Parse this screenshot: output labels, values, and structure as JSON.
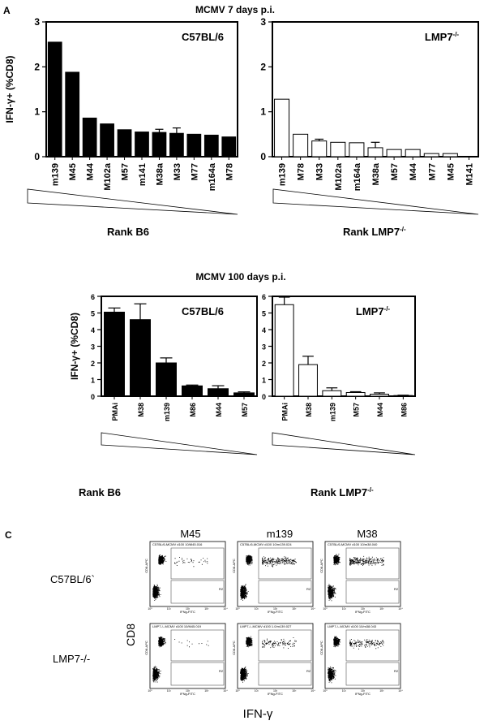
{
  "panel_labels": {
    "a": "A",
    "c": "C"
  },
  "section_titles": {
    "top": "MCMV 7 days p.i.",
    "middle": "MCMV 100 days p.i."
  },
  "rank_labels": {
    "top_left": "Rank B6",
    "top_right": "Rank LMP7",
    "middle_left": "Rank B6",
    "middle_right": "Rank LMP7",
    "superscript": "-/-"
  },
  "chart_data": [
    {
      "id": "day7_c57",
      "type": "bar",
      "title": "C57BL/6",
      "ylabel": "IFN-γ+ (%CD8)",
      "ylim": [
        0,
        3
      ],
      "yticks": [
        "0",
        "1",
        "2",
        "3"
      ],
      "bar_color": "#000000",
      "categories": [
        "m139",
        "M45",
        "M44",
        "M102a",
        "M57",
        "m141",
        "M38a",
        "M33",
        "M77",
        "m164a",
        "M78"
      ],
      "values": [
        2.55,
        1.88,
        0.86,
        0.73,
        0.6,
        0.55,
        0.54,
        0.52,
        0.5,
        0.48,
        0.44
      ],
      "errors": [
        0,
        0,
        0,
        0,
        0,
        0,
        0.07,
        0.12,
        0,
        0,
        0
      ]
    },
    {
      "id": "day7_lmp7",
      "type": "bar",
      "title": "LMP7",
      "title_sup": "-/-",
      "ylabel": "",
      "ylim": [
        0,
        3
      ],
      "yticks": [
        "0",
        "1",
        "2",
        "3"
      ],
      "bar_color": "#ffffff",
      "categories": [
        "m139",
        "M78",
        "M33",
        "M102a",
        "m164a",
        "M38a",
        "M57",
        "M44",
        "M77",
        "M45",
        "M141"
      ],
      "values": [
        1.28,
        0.5,
        0.35,
        0.32,
        0.31,
        0.2,
        0.16,
        0.16,
        0.07,
        0.07,
        0
      ],
      "errors": [
        0,
        0,
        0.04,
        0,
        0,
        0.12,
        0,
        0,
        0,
        0,
        0
      ]
    },
    {
      "id": "day100_c57",
      "type": "bar",
      "title": "C57BL/6",
      "ylabel": "IFN-γ+ (%CD8)",
      "ylim": [
        0,
        6
      ],
      "yticks": [
        "0",
        "1",
        "2",
        "3",
        "4",
        "5",
        "6"
      ],
      "bar_color": "#000000",
      "categories": [
        "PMAi",
        "M38",
        "m139",
        "M86",
        "M44",
        "M57"
      ],
      "values": [
        5.05,
        4.6,
        2.0,
        0.62,
        0.45,
        0.2
      ],
      "errors": [
        0.25,
        0.95,
        0.3,
        0.05,
        0.18,
        0.06
      ]
    },
    {
      "id": "day100_lmp7",
      "type": "bar",
      "title": "LMP7",
      "title_sup": "-/-",
      "ylabel": "",
      "ylim": [
        0,
        6
      ],
      "yticks": [
        "0",
        "1",
        "2",
        "3",
        "4",
        "5",
        "6"
      ],
      "bar_color": "#ffffff",
      "categories": [
        "PMAi",
        "M38",
        "m139",
        "M57",
        "M44",
        "M86"
      ],
      "values": [
        5.5,
        1.9,
        0.33,
        0.22,
        0.12,
        0.04
      ],
      "errors": [
        0.45,
        0.5,
        0.17,
        0.05,
        0.08,
        0.02
      ]
    }
  ],
  "flow": {
    "columns": [
      "M45",
      "m139",
      "M38"
    ],
    "rows": [
      "C57BL/6`",
      "LMP7-/-"
    ],
    "y_axis_label": "CD8",
    "x_axis_label": "IFN-γ",
    "plot_titles": [
      [
        "C57BL/6-MCMV d100 10/M45.016",
        "C57BL/6-MCMV d100 10/m139.024",
        "C57BL/6-MCMV d100 10/m38.040"
      ],
      [
        "LMP7-/--MCMV d100 10/M45.019",
        "LMP7-/--MCMV d100 1.0/m139.027",
        "LMP7-/--MCMV d100 10/m38.043"
      ]
    ],
    "mini_ylabel": "CD8-APC",
    "mini_xlabel": "IFNg-FITC",
    "gate_label": "R2",
    "tick_labels": [
      "10⁰",
      "10¹",
      "10²",
      "10³",
      "10⁴"
    ],
    "tail_density": [
      [
        0.15,
        0.9,
        1.0
      ],
      [
        0.05,
        0.45,
        0.6
      ]
    ]
  }
}
